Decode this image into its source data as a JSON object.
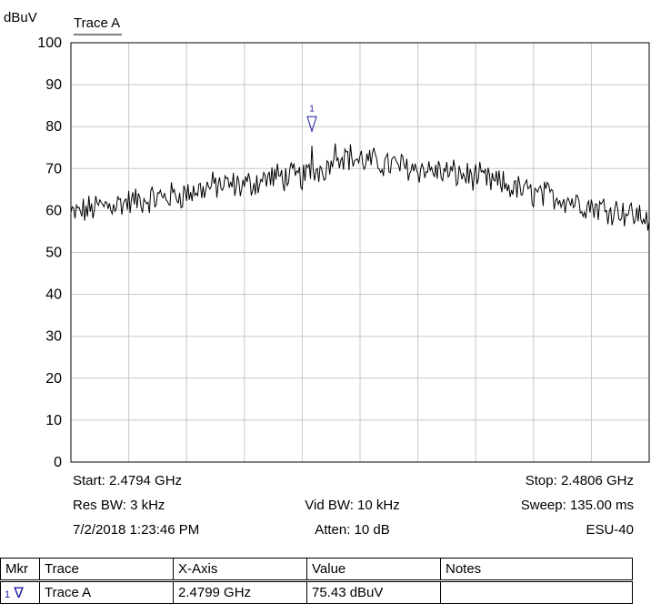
{
  "chart_data": {
    "type": "line",
    "unit_label": "dBuV",
    "legend": "Trace A",
    "ylim": [
      0,
      100
    ],
    "y_ticks": [
      0,
      10,
      20,
      30,
      40,
      50,
      60,
      70,
      80,
      90,
      100
    ],
    "x_range_ghz": [
      2.4794,
      2.4806
    ],
    "grid": true,
    "series": [
      {
        "name": "Trace A",
        "color": "#000000",
        "x": [
          2.4794,
          2.47946,
          2.47952,
          2.47958,
          2.47964,
          2.4797,
          2.47976,
          2.47982,
          2.47988,
          2.47994,
          2.4799,
          2.48,
          2.48006,
          2.48012,
          2.48018,
          2.48024,
          2.4803,
          2.48036,
          2.48042,
          2.48048,
          2.48054,
          2.4806
        ],
        "values": [
          59,
          61,
          62,
          63,
          64,
          66,
          66,
          68,
          68,
          71,
          75.4,
          72,
          71,
          70,
          69,
          68,
          66,
          64,
          63,
          61,
          60,
          58
        ]
      }
    ],
    "markers": [
      {
        "id": "1",
        "x_ghz": 2.4799,
        "value": 75.43
      }
    ]
  },
  "info": {
    "start": "Start: 2.4794 GHz",
    "stop": "Stop: 2.4806 GHz",
    "res_bw": "Res BW: 3 kHz",
    "vid_bw": "Vid BW: 10 kHz",
    "sweep": "Sweep: 135.00 ms",
    "timestamp": "7/2/2018 1:23:46 PM",
    "atten": "Atten: 10 dB",
    "instrument": "ESU-40"
  },
  "marker_table": {
    "headers": [
      "Mkr",
      "Trace",
      "X-Axis",
      "Value",
      "Notes"
    ],
    "rows": [
      {
        "mkr": "1",
        "symbol": "∇",
        "trace": "Trace A",
        "x_axis": "2.4799 GHz",
        "value": "75.43 dBuV",
        "notes": ""
      }
    ]
  }
}
